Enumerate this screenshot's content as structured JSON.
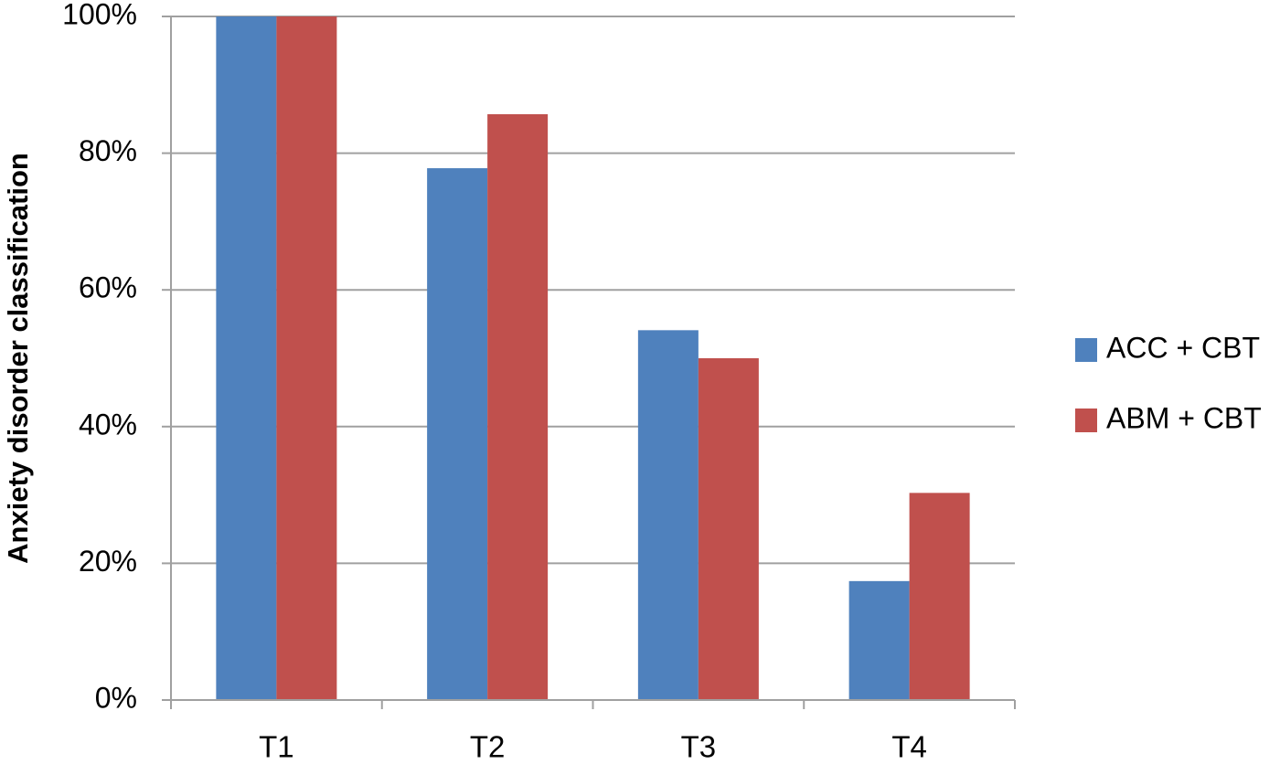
{
  "chart_data": {
    "type": "bar",
    "y_label": "Anxiety disorder classification",
    "categories": [
      "T1",
      "T2",
      "T3",
      "T4"
    ],
    "series": [
      {
        "name": "ACC + CBT",
        "color": "#4f81bd",
        "values": [
          100,
          77.8,
          54.1,
          17.4
        ]
      },
      {
        "name": "ABM + CBT",
        "color": "#c0504d",
        "values": [
          100,
          85.7,
          50.0,
          30.3
        ]
      }
    ],
    "ylim": [
      0,
      100
    ],
    "yticks": [
      {
        "value": 0,
        "label": "0%"
      },
      {
        "value": 20,
        "label": "20%"
      },
      {
        "value": 40,
        "label": "40%"
      },
      {
        "value": 60,
        "label": "60%"
      },
      {
        "value": 80,
        "label": "80%"
      },
      {
        "value": 100,
        "label": "100%"
      }
    ],
    "grid": true,
    "legend": "right"
  }
}
